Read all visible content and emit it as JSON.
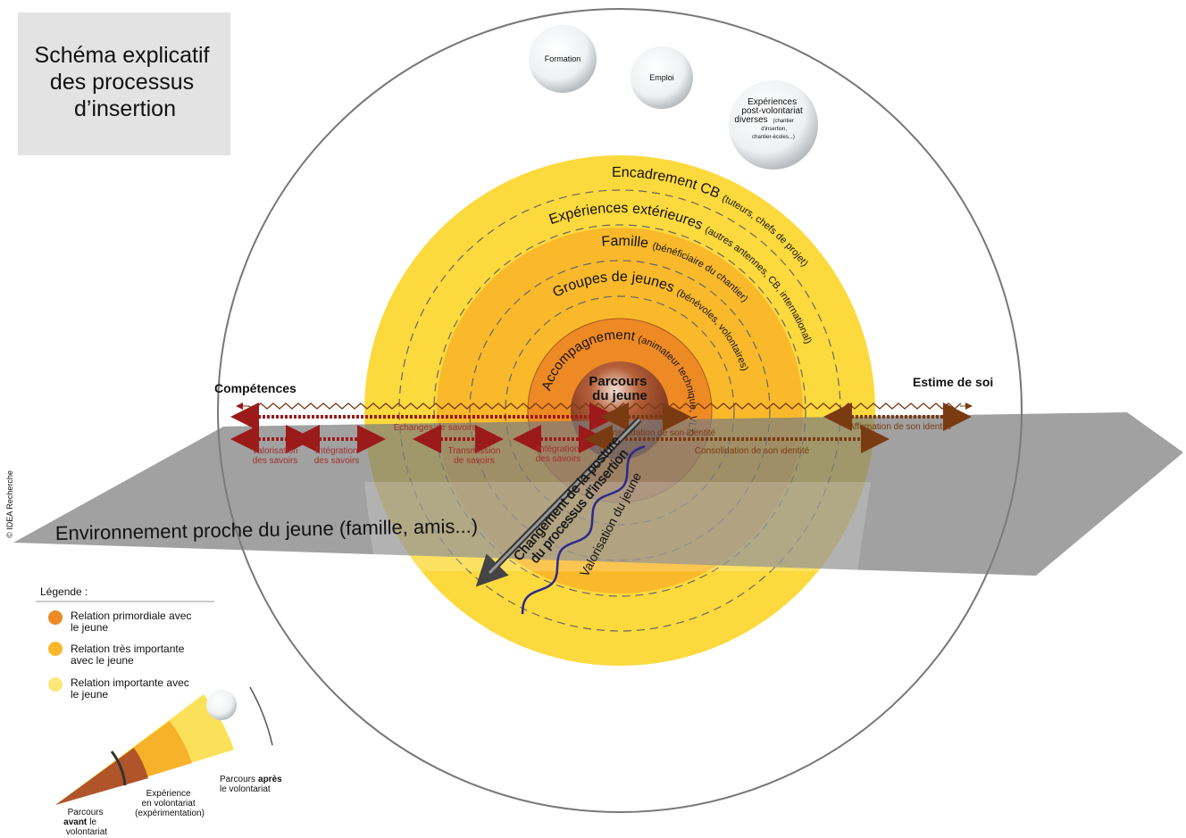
{
  "title": {
    "lines": [
      "Schéma explicatif",
      "des processus",
      "d’insertion"
    ]
  },
  "bubbles": [
    {
      "label": "Formation"
    },
    {
      "label": "Emploi"
    },
    {
      "lines": [
        "Expériences",
        "post-volontariat",
        "diverses"
      ],
      "detail": [
        "(chantier",
        "d'insertion,",
        "chantier-écoles...)"
      ]
    }
  ],
  "rings": [
    {
      "label": "Encadrement CB",
      "detail": "(tuteurs, chefs de projet)"
    },
    {
      "label": "Expériences extérieures",
      "detail": "(autres antennes, CB, international)"
    },
    {
      "label": "Famille",
      "detail": "(bénéficiaire du chantier)"
    },
    {
      "label": "Groupes de jeunes",
      "detail": "(bénévoles, volontaires)"
    },
    {
      "label": "Accompagnement",
      "detail": "(animateur technique, VLT)"
    }
  ],
  "center": {
    "lines": [
      "Parcours",
      "du jeune"
    ]
  },
  "axis": {
    "left": "Compétences",
    "right": "Estime de soi"
  },
  "arrows": {
    "echanges": "Echanges de savoirs",
    "consolidation_top": "Consolidation de son identité",
    "affirmation": "Affirmation de son identité",
    "valorisation": [
      "Valorisation",
      "des savoirs"
    ],
    "integration_1": [
      "Intégration",
      "des savoirs"
    ],
    "transmission": [
      "Transmission",
      "de savoirs"
    ],
    "integration_2": [
      "Intégration",
      "des savoirs"
    ],
    "consolidation_bottom": "Consolidation de son identité"
  },
  "environment": "Environnement proche du jeune (famille, amis...)",
  "posture": {
    "lines": [
      "Changement de la posture",
      "du processus d'insertion"
    ]
  },
  "valorisation": "Valorisation du jeune",
  "credit": "© IDEA Recherche",
  "legend": {
    "title": "Légende :",
    "items": [
      {
        "lines": [
          "Relation primordiale avec",
          "le jeune"
        ]
      },
      {
        "lines": [
          "Relation très importante",
          "avec le jeune"
        ]
      },
      {
        "lines": [
          "Relation importante avec",
          "le jeune"
        ]
      }
    ]
  },
  "phases": {
    "before": {
      "first": "Parcours",
      "bold": "avant",
      "rest": "le",
      "last": "volontariat"
    },
    "during": {
      "lines": [
        "Expérience",
        "en volontariat",
        "(expérimentation)"
      ]
    },
    "after": {
      "first": "Parcours",
      "bold": "après",
      "last": "le volontariat"
    }
  }
}
